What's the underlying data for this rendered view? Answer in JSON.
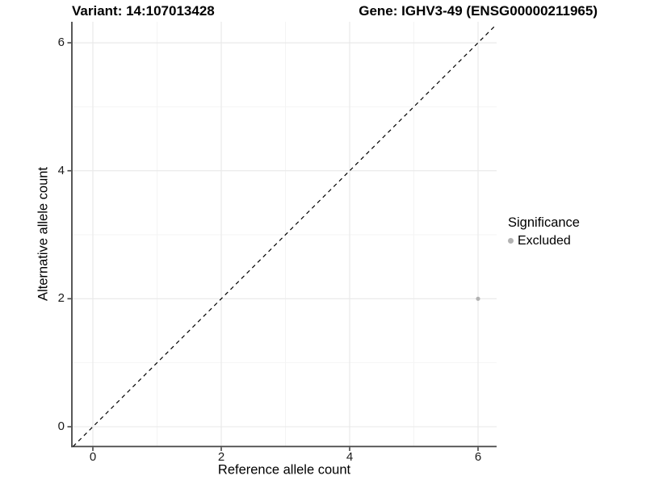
{
  "header": {
    "variant_title": "Variant: 14:107013428",
    "gene_title": "Gene: IGHV3-49 (ENSG00000211965)"
  },
  "legend": {
    "title": "Significance",
    "items": [
      {
        "label": "Excluded",
        "color": "#b2b2b2"
      }
    ]
  },
  "colors": {
    "background": "#ffffff",
    "axis_line": "#454545",
    "tick_mark": "#454545",
    "grid_major": "#e8e8e8",
    "grid_minor": "#f3f3f3",
    "identity_line": "#000000",
    "point_excluded": "#b2b2b2",
    "tick_text": "#1a1a1a",
    "title_text": "#000000"
  },
  "chart_data": {
    "type": "scatter",
    "title": "Variant: 14:107013428   Gene: IGHV3-49 (ENSG00000211965)",
    "xlabel": "Reference allele count",
    "ylabel": "Alternative allele count",
    "xlim": [
      -0.33,
      6.33
    ],
    "ylim": [
      -0.3,
      6.33
    ],
    "x_ticks": [
      0,
      2,
      4,
      6
    ],
    "y_ticks": [
      0,
      2,
      4,
      6
    ],
    "x_minor_ticks": [
      1,
      3,
      5
    ],
    "y_minor_ticks": [
      1,
      3,
      5
    ],
    "grid": "on",
    "legend_position": "right",
    "series": [
      {
        "name": "Excluded",
        "color": "#b2b2b2",
        "points": [
          {
            "x": 6,
            "y": 2
          }
        ]
      }
    ],
    "reference_line": {
      "type": "abline",
      "slope": 1,
      "intercept": 0,
      "style": "dashed",
      "color": "#000000"
    }
  }
}
